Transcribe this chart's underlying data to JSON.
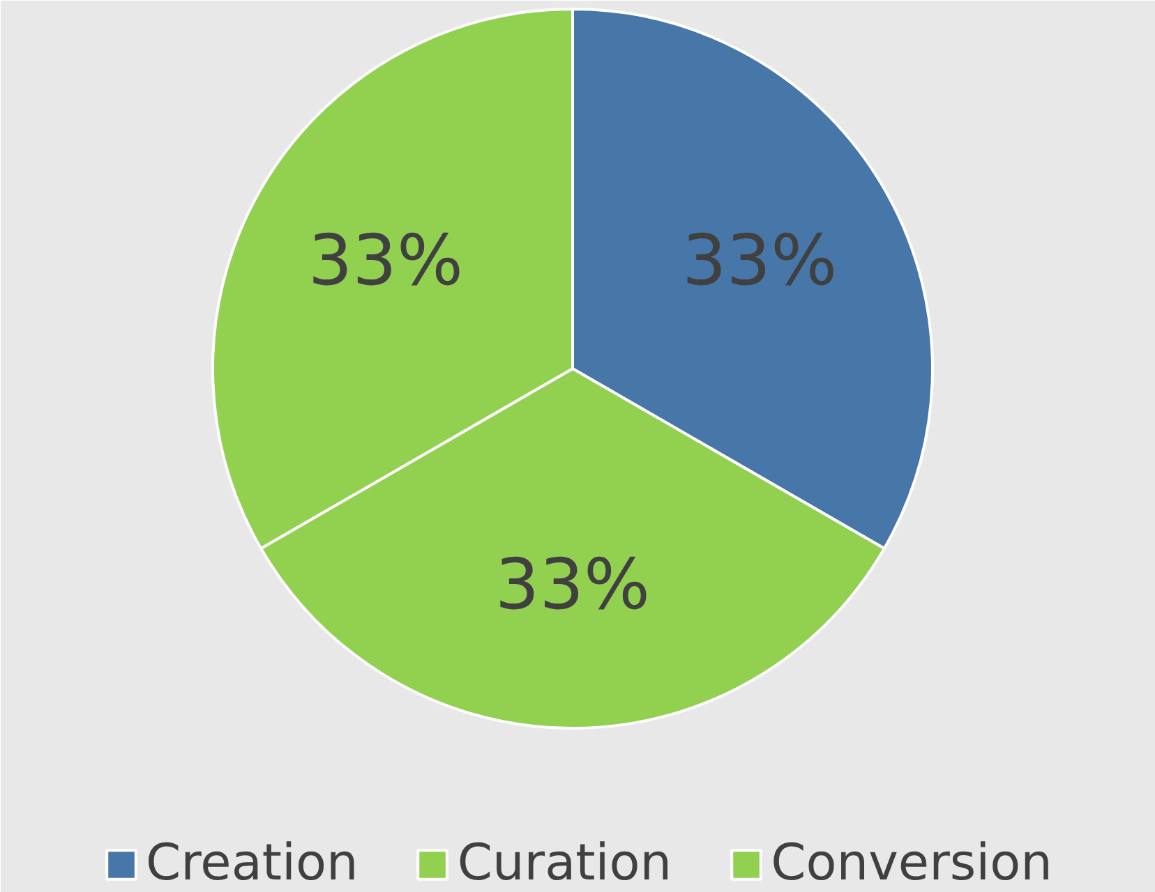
{
  "chart_data": {
    "type": "pie",
    "categories": [
      "Creation",
      "Curation",
      "Conversion"
    ],
    "values": [
      33,
      33,
      33
    ],
    "colors": [
      "#4677a8",
      "#92d050",
      "#92d050"
    ],
    "value_labels": [
      "33%",
      "33%",
      "33%"
    ],
    "legend": "bottom"
  }
}
